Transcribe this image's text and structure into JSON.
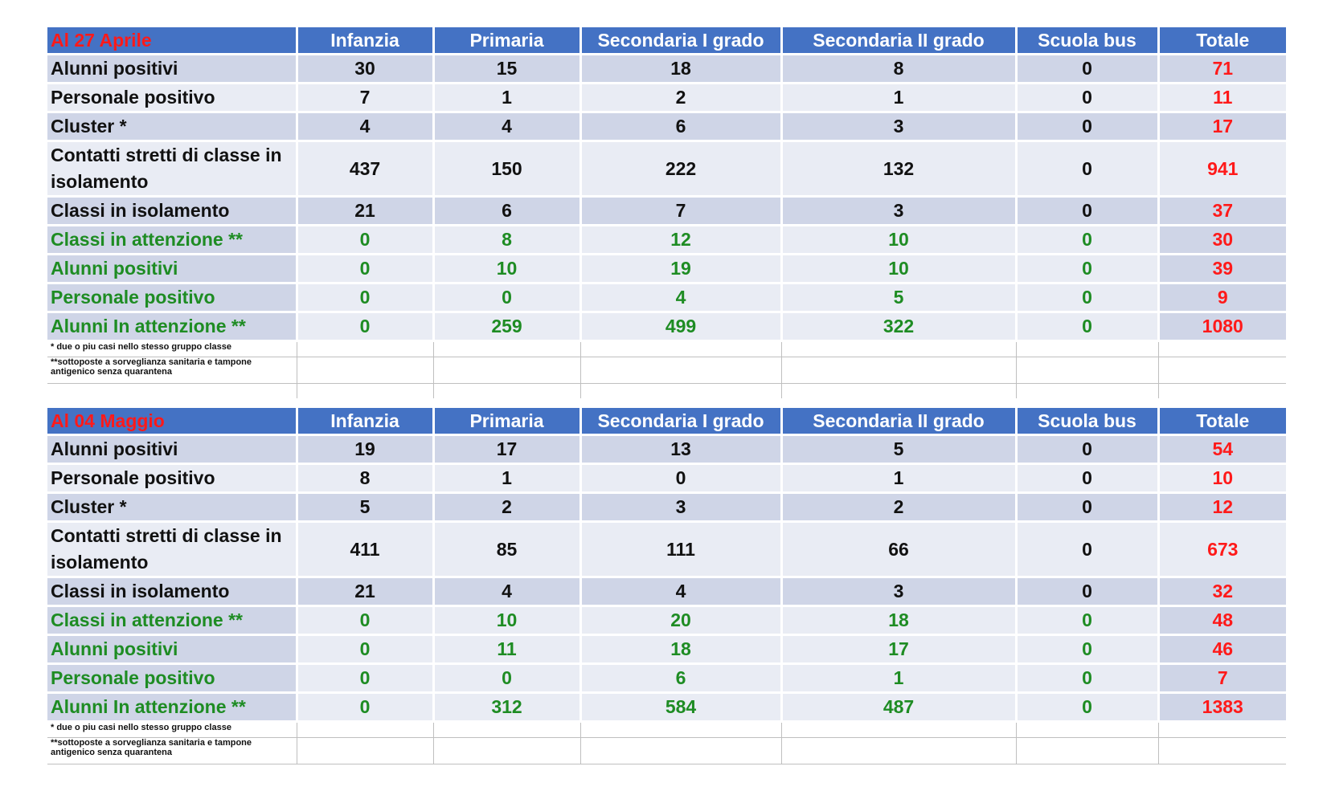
{
  "columns": [
    "Infanzia",
    "Primaria",
    "Secondaria I grado",
    "Secondaria II grado",
    "Scuola bus",
    "Totale"
  ],
  "notes": {
    "cluster": "* due o piu casi  nello stesso gruppo classe",
    "sorveglianza_line1": "**sottoposte a sorveglianza sanitaria e tampone",
    "sorveglianza_line2": "antigenico senza quarantena"
  },
  "tables": [
    {
      "date_label": "Al  27 Aprile",
      "rows": [
        {
          "label": "Alunni positivi",
          "values": [
            "30",
            "15",
            "18",
            "8",
            "0",
            "71"
          ]
        },
        {
          "label": "Personale positivo",
          "values": [
            "7",
            "1",
            "2",
            "1",
            "0",
            "11"
          ]
        },
        {
          "label": "Cluster *",
          "values": [
            "4",
            "4",
            "6",
            "3",
            "0",
            "17"
          ]
        },
        {
          "label_line1": "Contatti stretti di classe in",
          "label_line2": "isolamento",
          "values": [
            "437",
            "150",
            "222",
            "132",
            "0",
            "941"
          ]
        },
        {
          "label": "Classi in isolamento",
          "values": [
            "21",
            "6",
            "7",
            "3",
            "0",
            "37"
          ]
        },
        {
          "label": "Classi in attenzione **",
          "values": [
            "0",
            "8",
            "12",
            "10",
            "0",
            "30"
          ]
        },
        {
          "label": "Alunni positivi",
          "values": [
            "0",
            "10",
            "19",
            "10",
            "0",
            "39"
          ]
        },
        {
          "label": "Personale positivo",
          "values": [
            "0",
            "0",
            "4",
            "5",
            "0",
            "9"
          ]
        },
        {
          "label": "Alunni In attenzione **",
          "values": [
            "0",
            "259",
            "499",
            "322",
            "0",
            "1080"
          ]
        }
      ]
    },
    {
      "date_label": "Al  04 Maggio",
      "rows": [
        {
          "label": "Alunni positivi",
          "values": [
            "19",
            "17",
            "13",
            "5",
            "0",
            "54"
          ]
        },
        {
          "label": "Personale positivo",
          "values": [
            "8",
            "1",
            "0",
            "1",
            "0",
            "10"
          ]
        },
        {
          "label": "Cluster *",
          "values": [
            "5",
            "2",
            "3",
            "2",
            "0",
            "12"
          ]
        },
        {
          "label_line1": "Contatti stretti di classe in",
          "label_line2": "isolamento",
          "values": [
            "411",
            "85",
            "111",
            "66",
            "0",
            "673"
          ]
        },
        {
          "label": "Classi in isolamento",
          "values": [
            "21",
            "4",
            "4",
            "3",
            "0",
            "32"
          ]
        },
        {
          "label": "Classi in attenzione **",
          "values": [
            "0",
            "10",
            "20",
            "18",
            "0",
            "48"
          ]
        },
        {
          "label": "Alunni positivi",
          "values": [
            "0",
            "11",
            "18",
            "17",
            "0",
            "46"
          ]
        },
        {
          "label": "Personale positivo",
          "values": [
            "0",
            "0",
            "6",
            "1",
            "0",
            "7"
          ]
        },
        {
          "label": "Alunni In attenzione **",
          "values": [
            "0",
            "312",
            "584",
            "487",
            "0",
            "1383"
          ]
        }
      ]
    }
  ],
  "colors": {
    "header_bg": "#4472c4",
    "date_text": "#ff1a1a",
    "total_text": "#ff1a1a",
    "attention_text": "#1e8c23",
    "row_dark": "#cfd5e7",
    "row_light": "#e9ecf4"
  }
}
